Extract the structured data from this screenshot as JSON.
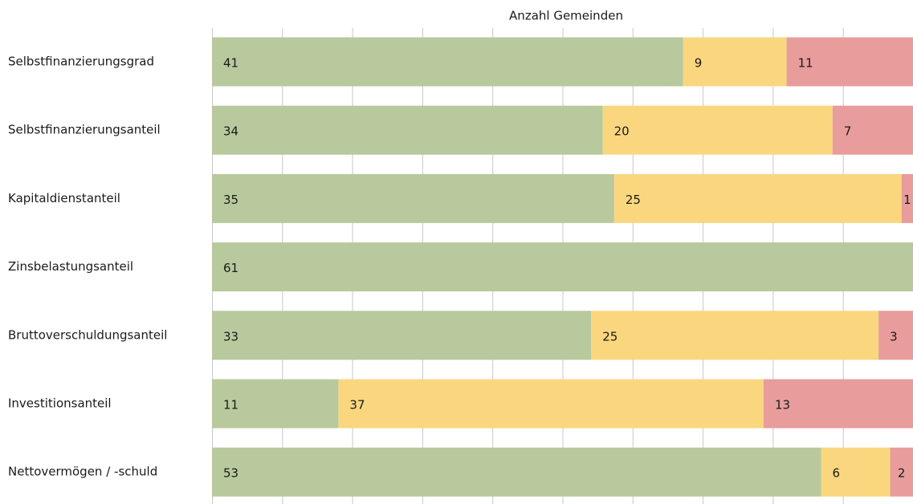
{
  "chart_data": {
    "type": "stacked_bar_horizontal",
    "title": "Anzahl Gemeinden",
    "categories": [
      "Selbstfinanzierungsgrad",
      "Selbstfinanzierungsanteil",
      "Kapitaldienstanteil",
      "Zinsbelastungsanteil",
      "Bruttoverschuldungsanteil",
      "Investitionsanteil",
      "Nettovermögen / -schuld"
    ],
    "series": [
      {
        "color": "#b8c99d",
        "values": [
          41,
          34,
          35,
          61,
          33,
          11,
          53
        ]
      },
      {
        "color": "#fad77e",
        "values": [
          9,
          20,
          25,
          null,
          25,
          37,
          6
        ]
      },
      {
        "color": "#e89c9c",
        "values": [
          11,
          7,
          1,
          null,
          3,
          13,
          2
        ]
      }
    ],
    "xlim": [
      0,
      61
    ],
    "grid": true
  }
}
